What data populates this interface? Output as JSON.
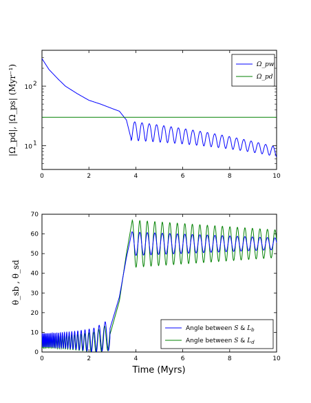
{
  "chart_data": [
    {
      "type": "line",
      "ylabel": "|Ω_pd|, |Ω_ps| (Myr⁻¹)",
      "xlim": [
        0,
        10
      ],
      "ylim": [
        4,
        400
      ],
      "yscale": "log",
      "x_ticks": [
        "0",
        "2",
        "4",
        "6",
        "8",
        "10"
      ],
      "y_ticks": [
        {
          "value": 100,
          "base": "10",
          "exp": "2"
        },
        {
          "value": 10,
          "base": "10",
          "exp": "1"
        }
      ],
      "legend": "top-right",
      "series": [
        {
          "name": "Ω_pw",
          "color": "#0000ff",
          "description_points": {
            "x": [
              0,
              0.3,
              0.7,
              1.0,
              1.5,
              2.0,
              2.5,
              3.0,
              3.3,
              3.6,
              3.8
            ],
            "y": [
              290,
              190,
              130,
              100,
              75,
              58,
              50,
              42,
              38,
              27,
              13
            ]
          },
          "oscillation": {
            "start": 3.8,
            "period": 0.31,
            "mean_start": 19,
            "mean_end": 8,
            "rel_amp_start": 0.35,
            "rel_amp_end": 0.18
          }
        },
        {
          "name": "Ω_pd",
          "color": "#008000",
          "x": [
            0,
            10
          ],
          "y": [
            30,
            30
          ]
        }
      ]
    },
    {
      "type": "line",
      "xlabel": "Time (Myrs)",
      "ylabel": "θ_sb , θ_sd",
      "xlim": [
        0,
        10
      ],
      "ylim": [
        0,
        70
      ],
      "x_ticks": [
        "0",
        "2",
        "4",
        "6",
        "8",
        "10"
      ],
      "y_ticks": [
        "0",
        "10",
        "20",
        "30",
        "40",
        "50",
        "60",
        "70"
      ],
      "legend": "bottom-right",
      "series": [
        {
          "name": "Angle between S & L_b",
          "label_prefix": "Angle between ",
          "label_S": "S",
          "label_amp": " & ",
          "label_L": "L",
          "label_sub": "b",
          "color": "#0000ff",
          "early_osc": {
            "mean": 6,
            "amp_start": 3.5,
            "amp_end": 8,
            "period_start": 0.05,
            "period_end": 0.3
          },
          "rise": {
            "x": [
              2.9,
              3.3,
              3.6,
              3.85
            ],
            "y": [
              12,
              28,
              48,
              62
            ]
          },
          "late_osc": {
            "mean": 55,
            "amp_start": 6,
            "amp_end": 3,
            "period": 0.32
          }
        },
        {
          "name": "Angle between S & L_d",
          "label_prefix": "Angle between ",
          "label_S": "S",
          "label_amp": " & ",
          "label_L": "L",
          "label_sub": "d",
          "color": "#008000",
          "early_osc": {
            "mean": 5,
            "amp_start": 3,
            "amp_end": 7,
            "period_start": 0.05,
            "period_end": 0.3
          },
          "rise": {
            "x": [
              2.9,
              3.3,
              3.6,
              3.85
            ],
            "y": [
              9,
              26,
              50,
              67
            ]
          },
          "late_osc": {
            "mean": 55,
            "amp_start": 12,
            "amp_end": 7,
            "period": 0.32
          }
        }
      ]
    }
  ],
  "colors": {
    "blue": "#0000ff",
    "green": "#008000"
  }
}
